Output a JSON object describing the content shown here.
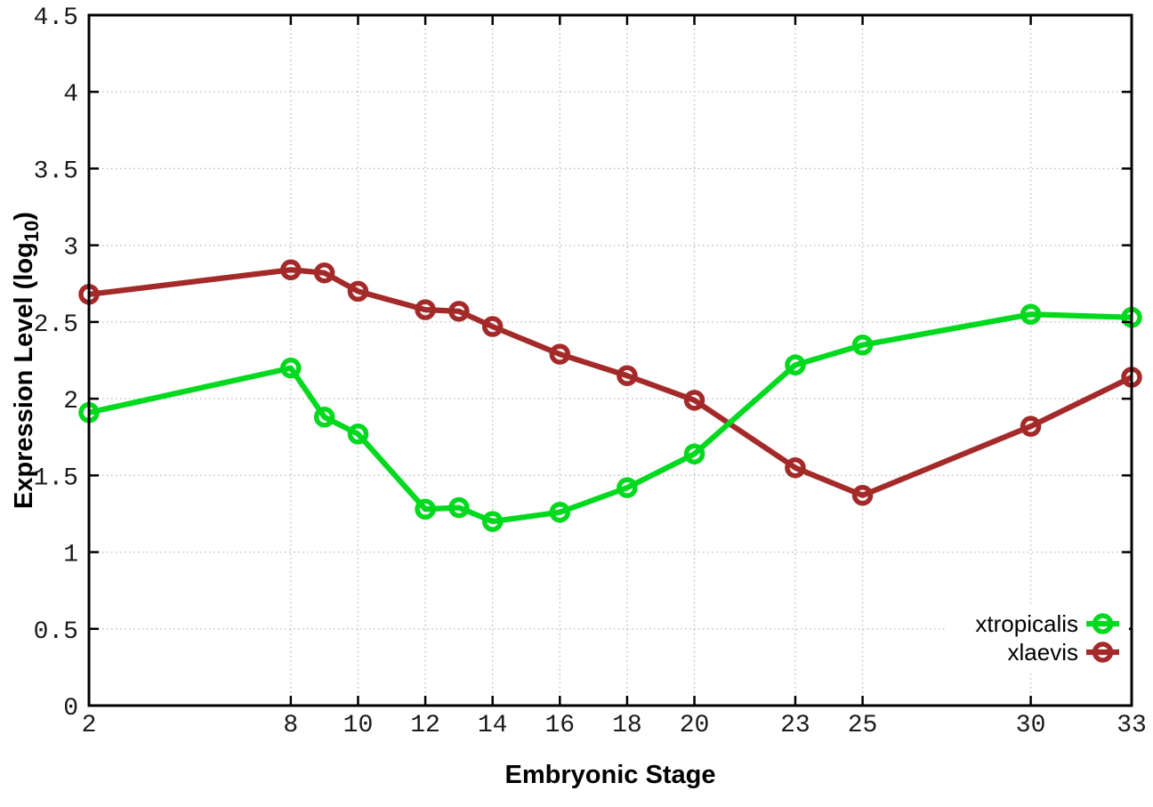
{
  "chart_data": {
    "type": "line",
    "title": "",
    "xlabel": "Embryonic Stage",
    "ylabel": "Expression Level (log10)",
    "ylabel_parts": {
      "prefix": "Expression Level (log",
      "subscript": "10",
      "suffix": ")"
    },
    "x": [
      2,
      8,
      9,
      10,
      12,
      13,
      14,
      16,
      18,
      20,
      23,
      25,
      30,
      33
    ],
    "series": [
      {
        "name": "xtropicalis",
        "color": "#00d91e",
        "values": [
          1.91,
          2.2,
          1.88,
          1.77,
          1.28,
          1.29,
          1.2,
          1.26,
          1.42,
          1.64,
          2.22,
          2.35,
          2.55,
          2.53
        ]
      },
      {
        "name": "xlaevis",
        "color": "#a42a2a",
        "values": [
          2.68,
          2.84,
          2.82,
          2.7,
          2.58,
          2.57,
          2.47,
          2.29,
          2.15,
          1.99,
          1.55,
          1.37,
          1.82,
          2.14
        ]
      }
    ],
    "xlim": [
      2,
      33
    ],
    "ylim": [
      0,
      4.5
    ],
    "xticks": [
      2,
      8,
      10,
      12,
      14,
      16,
      18,
      20,
      23,
      25,
      30,
      33
    ],
    "yticks": [
      0,
      0.5,
      1,
      1.5,
      2,
      2.5,
      3,
      3.5,
      4,
      4.5
    ],
    "grid": true,
    "grid_style": "dotted",
    "legend_position": "bottom-right",
    "marker": "open-circle",
    "draw_order": [
      "xlaevis",
      "xtropicalis"
    ]
  },
  "colors": {
    "background": "#ffffff",
    "border": "#000000",
    "grid": "#bdbdbd",
    "text": "#000000",
    "legend_background": "#ffffff"
  }
}
